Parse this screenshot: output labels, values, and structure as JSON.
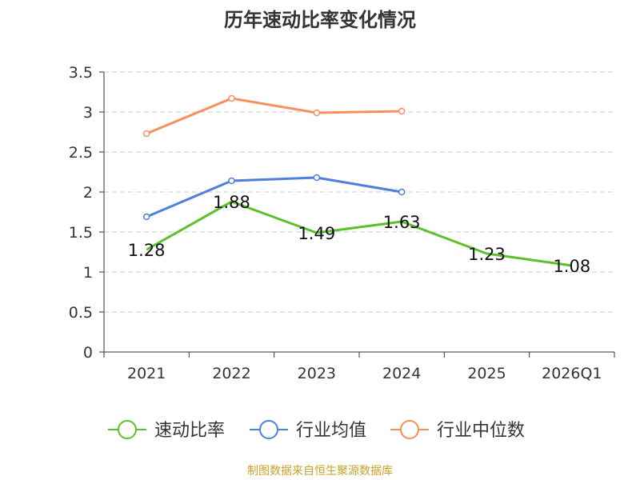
{
  "chart_data": {
    "type": "line",
    "title": "历年速动比率变化情况",
    "categories": [
      "2021",
      "2022",
      "2023",
      "2024",
      "2025",
      "2026Q1"
    ],
    "ylim": [
      0,
      3.5
    ],
    "yticks": [
      "0",
      "0.5",
      "1",
      "1.5",
      "2",
      "2.5",
      "3",
      "3.5"
    ],
    "grid": true,
    "legend_position": "bottom",
    "series": [
      {
        "name": "速动比率",
        "color": "#5cc02a",
        "values": [
          1.28,
          1.88,
          1.49,
          1.63,
          1.23,
          1.08
        ],
        "labels": [
          "1.28",
          "1.88",
          "1.49",
          "1.63",
          "1.23",
          "1.08"
        ],
        "markers": false
      },
      {
        "name": "行业均值",
        "color": "#4f7fdc",
        "values": [
          1.69,
          2.14,
          2.18,
          2.0,
          null,
          null
        ],
        "markers": true
      },
      {
        "name": "行业中位数",
        "color": "#f7905a",
        "values": [
          2.73,
          3.17,
          2.99,
          3.01,
          null,
          null
        ],
        "markers": true
      }
    ]
  },
  "source_text": "制图数据来自恒生聚源数据库"
}
